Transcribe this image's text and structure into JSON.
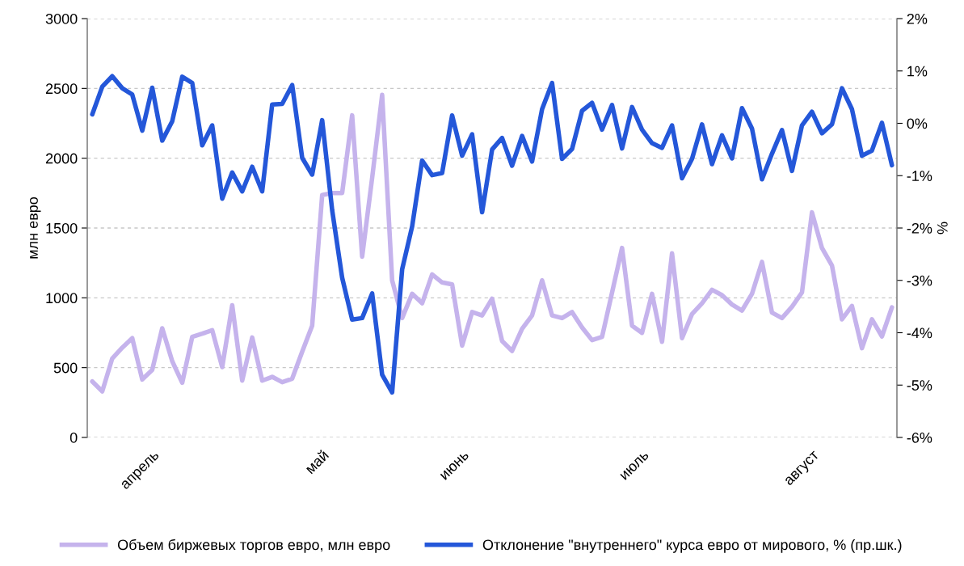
{
  "chart_data": {
    "type": "line",
    "ylabel": "млн евро",
    "y2label": "%",
    "categories": [
      null,
      null,
      null,
      null,
      null,
      null,
      "апрель",
      null,
      null,
      null,
      null,
      null,
      null,
      null,
      null,
      null,
      null,
      null,
      null,
      null,
      null,
      null,
      null,
      "май",
      null,
      null,
      null,
      null,
      null,
      null,
      null,
      null,
      null,
      null,
      null,
      null,
      null,
      "июнь",
      null,
      null,
      null,
      null,
      null,
      null,
      null,
      null,
      null,
      null,
      null,
      null,
      null,
      null,
      null,
      null,
      null,
      "июль",
      null,
      null,
      null,
      null,
      null,
      null,
      null,
      null,
      null,
      null,
      null,
      null,
      null,
      null,
      null,
      null,
      "август",
      null,
      null,
      null,
      null,
      null,
      null,
      null,
      null
    ],
    "series": [
      {
        "name": "Объем биржевых торгов евро, млн евро",
        "color": "#c5b3ec",
        "values": [
          401,
          330,
          566,
          643,
          711,
          415,
          484,
          782,
          546,
          392,
          720,
          743,
          768,
          504,
          947,
          407,
          716,
          407,
          434,
          396,
          421,
          614,
          801,
          1736,
          1751,
          1751,
          2307,
          1295,
          1859,
          2454,
          1125,
          855,
          1029,
          961,
          1168,
          1110,
          1096,
          658,
          898,
          874,
          994,
          691,
          620,
          778,
          874,
          1125,
          874,
          855,
          898,
          788,
          697,
          720,
          1038,
          1357,
          801,
          749,
          1029,
          685,
          1319,
          711,
          884,
          961,
          1058,
          1019,
          952,
          909,
          1029,
          1257,
          894,
          855,
          936,
          1038,
          1612,
          1357,
          1232,
          846,
          942,
          639,
          846,
          724,
          932
        ]
      },
      {
        "name": "Отклонение \"внутреннего\" курса евро от мирового, % (пр.шк.)",
        "color": "#2457d9",
        "axis": "y2",
        "values": [
          0.17,
          0.7,
          0.9,
          0.67,
          0.55,
          -0.14,
          0.68,
          -0.33,
          0.04,
          0.89,
          0.77,
          -0.42,
          -0.04,
          -1.44,
          -0.94,
          -1.3,
          -0.83,
          -1.3,
          0.36,
          0.37,
          0.73,
          -0.66,
          -0.98,
          0.06,
          -1.66,
          -2.95,
          -3.75,
          -3.72,
          -3.25,
          -4.8,
          -5.14,
          -2.79,
          -1.97,
          -0.71,
          -0.99,
          -0.95,
          0.15,
          -0.62,
          -0.21,
          -1.7,
          -0.5,
          -0.28,
          -0.81,
          -0.24,
          -0.73,
          0.27,
          0.77,
          -0.68,
          -0.49,
          0.24,
          0.39,
          -0.12,
          0.35,
          -0.48,
          0.31,
          -0.12,
          -0.38,
          -0.47,
          -0.04,
          -1.05,
          -0.68,
          -0.02,
          -0.78,
          -0.23,
          -0.67,
          0.29,
          -0.1,
          -1.07,
          -0.58,
          -0.13,
          -0.91,
          -0.04,
          0.22,
          -0.19,
          -0.02,
          0.67,
          0.27,
          -0.62,
          -0.52,
          0.01,
          -0.8
        ]
      }
    ],
    "ylim": [
      0,
      3000
    ],
    "yticks": [
      0,
      500,
      1000,
      1500,
      2000,
      2500,
      3000
    ],
    "y2lim": [
      -6,
      2
    ],
    "y2ticks": [
      {
        "value": -6,
        "label": "-6%"
      },
      {
        "value": -5,
        "label": "-5%"
      },
      {
        "value": -4,
        "label": "-4%"
      },
      {
        "value": -3,
        "label": "-3%"
      },
      {
        "value": -2,
        "label": "-2%"
      },
      {
        "value": -1,
        "label": "-1%"
      },
      {
        "value": 0,
        "label": "0%"
      },
      {
        "value": 1,
        "label": "1%"
      },
      {
        "value": 2,
        "label": "2%"
      }
    ],
    "grid": "y",
    "legend": "bottom",
    "marker": "none",
    "line_style": "solid"
  }
}
